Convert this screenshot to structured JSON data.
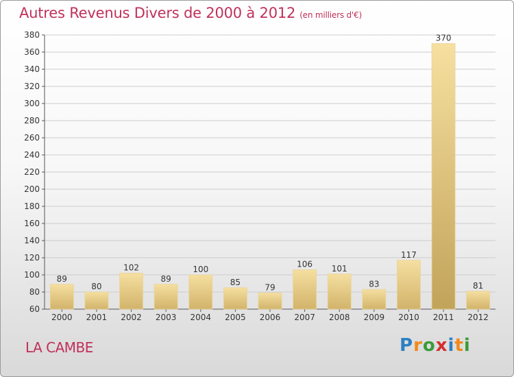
{
  "title": "Autres Revenus Divers de 2000 à 2012",
  "subtitle": "(en milliers d'€)",
  "place_name": "LA CAMBE",
  "brand": {
    "name": "Proxiti",
    "letters": [
      {
        "char": "P",
        "color": "#2e7fc1"
      },
      {
        "char": "r",
        "color": "#f08a1c"
      },
      {
        "char": "o",
        "color": "#3a9b3a"
      },
      {
        "char": "x",
        "color": "#d32f2f"
      },
      {
        "char": "i",
        "color": "#2e7fc1"
      },
      {
        "char": "t",
        "color": "#f08a1c"
      },
      {
        "char": "i",
        "color": "#3a9b3a"
      }
    ]
  },
  "colors": {
    "title": "#c0305a",
    "bar_light": "#f5dfa0",
    "bar_dark": "#d2b36a",
    "bar_highlight_light": "#f6e0a0",
    "bar_highlight_dark": "#c2a35a",
    "grid": "#cccccc"
  },
  "chart_data": {
    "type": "bar",
    "categories": [
      "2000",
      "2001",
      "2002",
      "2003",
      "2004",
      "2005",
      "2006",
      "2007",
      "2008",
      "2009",
      "2010",
      "2011",
      "2012"
    ],
    "values": [
      89,
      80,
      102,
      89,
      100,
      85,
      79,
      106,
      101,
      83,
      117,
      370,
      81
    ],
    "ylim": [
      60,
      380
    ],
    "yticks": [
      60,
      80,
      100,
      120,
      140,
      160,
      180,
      200,
      220,
      240,
      260,
      280,
      300,
      320,
      340,
      360,
      380
    ],
    "grid": true,
    "highlight_index": 11
  }
}
